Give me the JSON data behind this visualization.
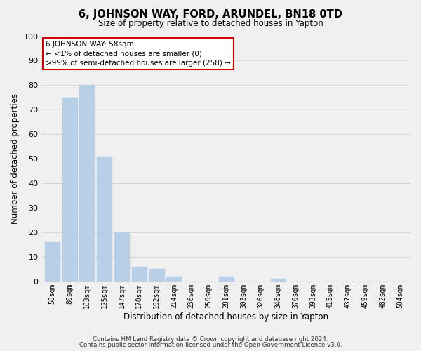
{
  "title": "6, JOHNSON WAY, FORD, ARUNDEL, BN18 0TD",
  "subtitle": "Size of property relative to detached houses in Yapton",
  "xlabel": "Distribution of detached houses by size in Yapton",
  "ylabel": "Number of detached properties",
  "bar_labels": [
    "58sqm",
    "80sqm",
    "103sqm",
    "125sqm",
    "147sqm",
    "170sqm",
    "192sqm",
    "214sqm",
    "236sqm",
    "259sqm",
    "281sqm",
    "303sqm",
    "326sqm",
    "348sqm",
    "370sqm",
    "393sqm",
    "415sqm",
    "437sqm",
    "459sqm",
    "482sqm",
    "504sqm"
  ],
  "bar_values": [
    16,
    75,
    80,
    51,
    20,
    6,
    5,
    2,
    0,
    0,
    2,
    0,
    0,
    1,
    0,
    0,
    0,
    0,
    0,
    0,
    0
  ],
  "bar_color": "#b8cfe8",
  "ylim": [
    0,
    100
  ],
  "yticks": [
    0,
    10,
    20,
    30,
    40,
    50,
    60,
    70,
    80,
    90,
    100
  ],
  "annotation_line1": "6 JOHNSON WAY: 58sqm",
  "annotation_line2": "← <1% of detached houses are smaller (0)",
  "annotation_line3": ">99% of semi-detached houses are larger (258) →",
  "footer_line1": "Contains HM Land Registry data © Crown copyright and database right 2024.",
  "footer_line2": "Contains public sector information licensed under the Open Government Licence v3.0.",
  "background_color": "#f0f0f0",
  "grid_color": "#d8d8d8",
  "box_edge_color": "#cc0000"
}
